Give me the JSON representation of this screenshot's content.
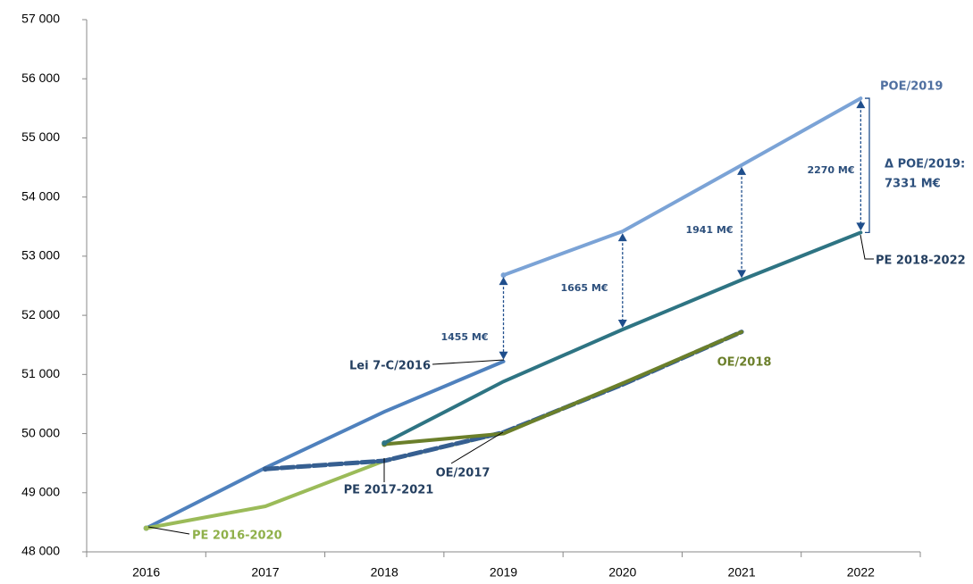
{
  "chart_data": {
    "type": "line",
    "categories": [
      "2016",
      "2017",
      "2018",
      "2019",
      "2020",
      "2021",
      "2022"
    ],
    "ylim": [
      48000,
      57000
    ],
    "yticks": [
      {
        "value": 48000,
        "label": "48 000"
      },
      {
        "value": 49000,
        "label": "49 000"
      },
      {
        "value": 50000,
        "label": "50 000"
      },
      {
        "value": 51000,
        "label": "51 000"
      },
      {
        "value": 52000,
        "label": "52 000"
      },
      {
        "value": 53000,
        "label": "53 000"
      },
      {
        "value": 54000,
        "label": "54 000"
      },
      {
        "value": 55000,
        "label": "55 000"
      },
      {
        "value": 56000,
        "label": "56 000"
      },
      {
        "value": 57000,
        "label": "57 000"
      }
    ],
    "grid": false,
    "series": [
      {
        "name": "Lei 7-C/2016",
        "color": "#4f81bd",
        "values": [
          48400,
          49420,
          50370,
          51220,
          null,
          null,
          null
        ]
      },
      {
        "name": "PE 2016-2020",
        "color": "#9bbb59",
        "values": [
          48400,
          48770,
          49540,
          50010,
          50850,
          null,
          null
        ]
      },
      {
        "name": "PE 2017-2021",
        "color": "#365f91",
        "dashed": true,
        "values": [
          null,
          49400,
          49540,
          50020,
          50830,
          51720,
          null
        ]
      },
      {
        "name": "OE/2017",
        "color": "#4f81bd",
        "values": [
          null,
          null,
          null,
          50010,
          null,
          null,
          null
        ]
      },
      {
        "name": "OE/2018",
        "color": "#6b7f2a",
        "values": [
          null,
          null,
          49820,
          50000,
          50850,
          51720,
          null
        ]
      },
      {
        "name": "PE 2018-2022",
        "color": "#2e7483",
        "values": [
          null,
          null,
          49840,
          50880,
          51760,
          52600,
          53400
        ]
      },
      {
        "name": "POE/2019",
        "color": "#7ba3d6",
        "values": [
          null,
          null,
          null,
          52680,
          53420,
          54540,
          55670
        ]
      }
    ],
    "annotations": [
      "1455 M€",
      "1665 M€",
      "1941 M€",
      "2270 M€",
      "Δ  POE/2019:",
      "7331 M€"
    ]
  }
}
